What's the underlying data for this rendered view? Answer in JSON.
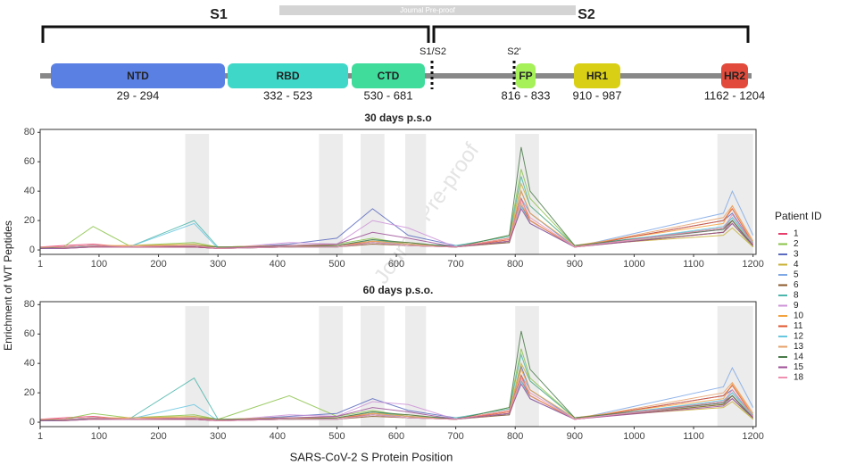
{
  "figure": {
    "ylabel": "Enrichment of WT Peptides",
    "xlabel": "SARS-CoV-2 S Protein Position",
    "legend_title": "Patient ID",
    "watermark": "Journal Pre-proof",
    "banner": "Journal Pre-proof"
  },
  "diagram": {
    "s1": "S1",
    "s2": "S2",
    "cleavage1": "S1/S2",
    "cleavage2": "S2'",
    "domains": [
      {
        "label": "NTD",
        "range": "29 - 294",
        "color": "#5b80e4"
      },
      {
        "label": "RBD",
        "range": "332 - 523",
        "color": "#3fd8c8"
      },
      {
        "label": "CTD",
        "range": "530 - 681",
        "color": "#3fdc9c"
      },
      {
        "label": "FP",
        "range": "816 - 833",
        "color": "#a6f05a"
      },
      {
        "label": "HR1",
        "range": "910 - 987",
        "color": "#d9d016"
      },
      {
        "label": "HR2",
        "range": "1162 - 1204",
        "color": "#e24b3b"
      }
    ]
  },
  "chart_data": [
    {
      "type": "line",
      "title": "30 days p.s.o",
      "xlim": [
        1,
        1205
      ],
      "ylim": [
        -3,
        82
      ],
      "xticks": [
        1,
        100,
        200,
        300,
        400,
        500,
        600,
        700,
        800,
        900,
        1000,
        1100,
        1200
      ],
      "yticks": [
        0,
        20,
        40,
        60,
        80
      ],
      "shaded_regions": [
        [
          245,
          285
        ],
        [
          470,
          510
        ],
        [
          540,
          580
        ],
        [
          615,
          650
        ],
        [
          800,
          840
        ],
        [
          1140,
          1200
        ]
      ],
      "x": [
        1,
        40,
        90,
        150,
        260,
        300,
        420,
        500,
        560,
        620,
        700,
        790,
        810,
        825,
        900,
        1150,
        1165,
        1200
      ],
      "series": [
        {
          "name": "1",
          "color": "#e83e6c",
          "values": [
            2,
            3,
            4,
            2,
            3,
            1,
            2,
            2,
            5,
            3,
            2,
            6,
            30,
            20,
            2,
            15,
            20,
            3
          ]
        },
        {
          "name": "2",
          "color": "#8bc34a",
          "values": [
            1,
            2,
            16,
            3,
            5,
            2,
            3,
            4,
            8,
            4,
            2,
            10,
            55,
            35,
            3,
            12,
            18,
            2
          ]
        },
        {
          "name": "3",
          "color": "#5c6bc0",
          "values": [
            2,
            1,
            3,
            2,
            2,
            1,
            4,
            8,
            28,
            10,
            3,
            5,
            40,
            25,
            2,
            20,
            25,
            4
          ]
        },
        {
          "name": "4",
          "color": "#c9b037",
          "values": [
            1,
            2,
            2,
            3,
            4,
            2,
            3,
            3,
            6,
            5,
            2,
            8,
            45,
            30,
            3,
            10,
            15,
            2
          ]
        },
        {
          "name": "5",
          "color": "#7fa8e6",
          "values": [
            1,
            1,
            2,
            2,
            3,
            1,
            2,
            3,
            5,
            4,
            2,
            6,
            35,
            25,
            2,
            25,
            40,
            10
          ]
        },
        {
          "name": "6",
          "color": "#8b5a2b",
          "values": [
            2,
            2,
            3,
            2,
            2,
            1,
            2,
            2,
            4,
            3,
            2,
            5,
            30,
            20,
            2,
            12,
            20,
            3
          ]
        },
        {
          "name": "8",
          "color": "#4db6ac",
          "values": [
            1,
            2,
            3,
            2,
            20,
            2,
            3,
            3,
            7,
            4,
            3,
            9,
            50,
            30,
            3,
            15,
            22,
            4
          ]
        },
        {
          "name": "9",
          "color": "#ce93d8",
          "values": [
            1,
            1,
            2,
            2,
            3,
            1,
            5,
            4,
            20,
            15,
            2,
            6,
            30,
            18,
            2,
            14,
            18,
            3
          ]
        },
        {
          "name": "10",
          "color": "#f4a340",
          "values": [
            2,
            2,
            3,
            3,
            3,
            2,
            3,
            3,
            6,
            4,
            2,
            8,
            40,
            25,
            3,
            18,
            30,
            5
          ]
        },
        {
          "name": "11",
          "color": "#e0542f",
          "values": [
            1,
            2,
            2,
            2,
            2,
            1,
            2,
            3,
            5,
            3,
            2,
            7,
            35,
            20,
            2,
            20,
            28,
            4
          ]
        },
        {
          "name": "12",
          "color": "#67c7e0",
          "values": [
            1,
            1,
            3,
            2,
            18,
            1,
            2,
            2,
            5,
            3,
            2,
            6,
            30,
            18,
            2,
            16,
            22,
            5
          ]
        },
        {
          "name": "13",
          "color": "#e6a06a",
          "values": [
            2,
            1,
            2,
            3,
            3,
            1,
            3,
            3,
            6,
            4,
            2,
            6,
            32,
            20,
            2,
            22,
            30,
            6
          ]
        },
        {
          "name": "14",
          "color": "#4a7a4a",
          "values": [
            1,
            2,
            3,
            2,
            3,
            2,
            2,
            3,
            7,
            5,
            2,
            10,
            70,
            40,
            3,
            14,
            20,
            3
          ]
        },
        {
          "name": "15",
          "color": "#9c4f96",
          "values": [
            1,
            1,
            2,
            2,
            2,
            1,
            3,
            4,
            12,
            8,
            2,
            6,
            28,
            18,
            2,
            12,
            18,
            3
          ]
        },
        {
          "name": "18",
          "color": "#f090b0",
          "values": [
            2,
            2,
            3,
            2,
            3,
            1,
            2,
            2,
            5,
            3,
            2,
            8,
            34,
            22,
            2,
            15,
            24,
            4
          ]
        }
      ]
    },
    {
      "type": "line",
      "title": "60 days p.s.o.",
      "xlim": [
        1,
        1205
      ],
      "ylim": [
        -3,
        82
      ],
      "xticks": [
        1,
        100,
        200,
        300,
        400,
        500,
        600,
        700,
        800,
        900,
        1000,
        1100,
        1200
      ],
      "yticks": [
        0,
        20,
        40,
        60,
        80
      ],
      "shaded_regions": [
        [
          245,
          285
        ],
        [
          470,
          510
        ],
        [
          540,
          580
        ],
        [
          615,
          650
        ],
        [
          800,
          840
        ],
        [
          1140,
          1200
        ]
      ],
      "x": [
        1,
        40,
        90,
        150,
        260,
        300,
        420,
        500,
        560,
        620,
        700,
        790,
        810,
        825,
        900,
        1150,
        1165,
        1200
      ],
      "series": [
        {
          "color": "#e83e6c",
          "values": [
            2,
            3,
            4,
            2,
            3,
            1,
            2,
            2,
            5,
            3,
            2,
            6,
            28,
            18,
            2,
            14,
            18,
            3
          ]
        },
        {
          "color": "#8bc34a",
          "values": [
            1,
            2,
            6,
            3,
            5,
            2,
            18,
            4,
            8,
            4,
            2,
            10,
            50,
            30,
            3,
            12,
            16,
            2
          ]
        },
        {
          "color": "#5c6bc0",
          "values": [
            2,
            1,
            3,
            2,
            2,
            1,
            4,
            6,
            16,
            8,
            3,
            5,
            38,
            22,
            2,
            18,
            22,
            4
          ]
        },
        {
          "color": "#c9b037",
          "values": [
            1,
            2,
            2,
            3,
            4,
            2,
            3,
            3,
            6,
            5,
            2,
            8,
            40,
            28,
            3,
            10,
            14,
            2
          ]
        },
        {
          "color": "#7fa8e6",
          "values": [
            1,
            1,
            2,
            2,
            3,
            1,
            2,
            3,
            5,
            4,
            2,
            6,
            32,
            22,
            2,
            24,
            37,
            10
          ]
        },
        {
          "color": "#8b5a2b",
          "values": [
            2,
            2,
            3,
            2,
            2,
            1,
            2,
            2,
            4,
            3,
            2,
            5,
            28,
            18,
            2,
            12,
            18,
            3
          ]
        },
        {
          "color": "#4db6ac",
          "values": [
            1,
            2,
            3,
            2,
            30,
            2,
            3,
            3,
            7,
            4,
            3,
            9,
            46,
            28,
            3,
            14,
            20,
            4
          ]
        },
        {
          "color": "#ce93d8",
          "values": [
            1,
            1,
            2,
            2,
            3,
            1,
            5,
            4,
            14,
            12,
            2,
            6,
            28,
            16,
            2,
            13,
            16,
            3
          ]
        },
        {
          "color": "#f4a340",
          "values": [
            2,
            2,
            3,
            3,
            3,
            2,
            3,
            3,
            6,
            4,
            2,
            8,
            36,
            22,
            3,
            16,
            26,
            5
          ]
        },
        {
          "color": "#e0542f",
          "values": [
            1,
            2,
            2,
            2,
            2,
            1,
            2,
            3,
            5,
            3,
            2,
            7,
            32,
            18,
            2,
            18,
            25,
            4
          ]
        },
        {
          "color": "#67c7e0",
          "values": [
            1,
            1,
            3,
            2,
            12,
            1,
            2,
            2,
            5,
            3,
            2,
            6,
            28,
            16,
            2,
            15,
            20,
            5
          ]
        },
        {
          "color": "#e6a06a",
          "values": [
            2,
            1,
            2,
            3,
            3,
            1,
            3,
            3,
            6,
            4,
            2,
            6,
            30,
            18,
            2,
            20,
            27,
            6
          ]
        },
        {
          "color": "#4a7a4a",
          "values": [
            1,
            2,
            3,
            2,
            3,
            2,
            2,
            3,
            7,
            5,
            2,
            10,
            62,
            36,
            3,
            13,
            18,
            3
          ]
        },
        {
          "color": "#9c4f96",
          "values": [
            1,
            1,
            2,
            2,
            2,
            1,
            3,
            4,
            10,
            7,
            2,
            6,
            26,
            16,
            2,
            11,
            16,
            3
          ]
        },
        {
          "color": "#f090b0",
          "values": [
            2,
            2,
            3,
            2,
            3,
            1,
            2,
            2,
            5,
            3,
            2,
            8,
            30,
            20,
            2,
            14,
            22,
            4
          ]
        }
      ]
    }
  ]
}
